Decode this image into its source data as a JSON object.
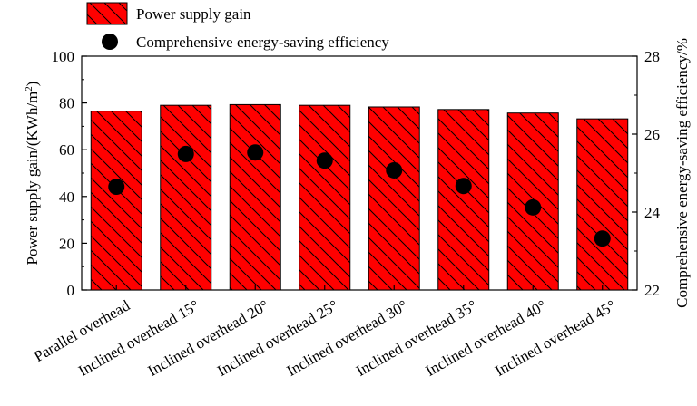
{
  "chart_data": {
    "type": "bar",
    "categories": [
      "Parallel overhead",
      "Inclined overhead 15°",
      "Inclined overhead 20°",
      "Inclined overhead 25°",
      "Inclined overhead 30°",
      "Inclined overhead 35°",
      "Inclined overhead 40°",
      "Inclined overhead 45°"
    ],
    "series": [
      {
        "name": "Power supply gain",
        "type": "bar",
        "axis": "left",
        "values": [
          76.5,
          79.0,
          79.3,
          79.0,
          78.3,
          77.2,
          75.7,
          73.2
        ],
        "color": "#ff0000",
        "pattern": "diagonal-hatch"
      },
      {
        "name": "Comprehensive energy-saving efficiency",
        "type": "scatter",
        "axis": "right",
        "values": [
          24.65,
          25.49,
          25.53,
          25.32,
          25.07,
          24.67,
          24.12,
          23.32
        ],
        "color": "#000000",
        "marker": "circle"
      }
    ],
    "ylabel": "Power supply gain/(KWh/m²)",
    "ylabel_parts": {
      "main": "Power supply gain/(KWh/m",
      "sup": "2",
      "end": ")"
    },
    "y2label": "Comprehensive energy-saving efficiency/%",
    "ylim": [
      0,
      100
    ],
    "y2lim": [
      22,
      28
    ],
    "yticks": [
      0,
      20,
      40,
      60,
      80,
      100
    ],
    "y2ticks": [
      22,
      24,
      26,
      28
    ],
    "ytick_labels": [
      "0",
      "20",
      "40",
      "60",
      "80",
      "100"
    ],
    "y2tick_labels": [
      "22",
      "24",
      "26",
      "28"
    ],
    "grid": false,
    "legend_position": "top-left"
  }
}
